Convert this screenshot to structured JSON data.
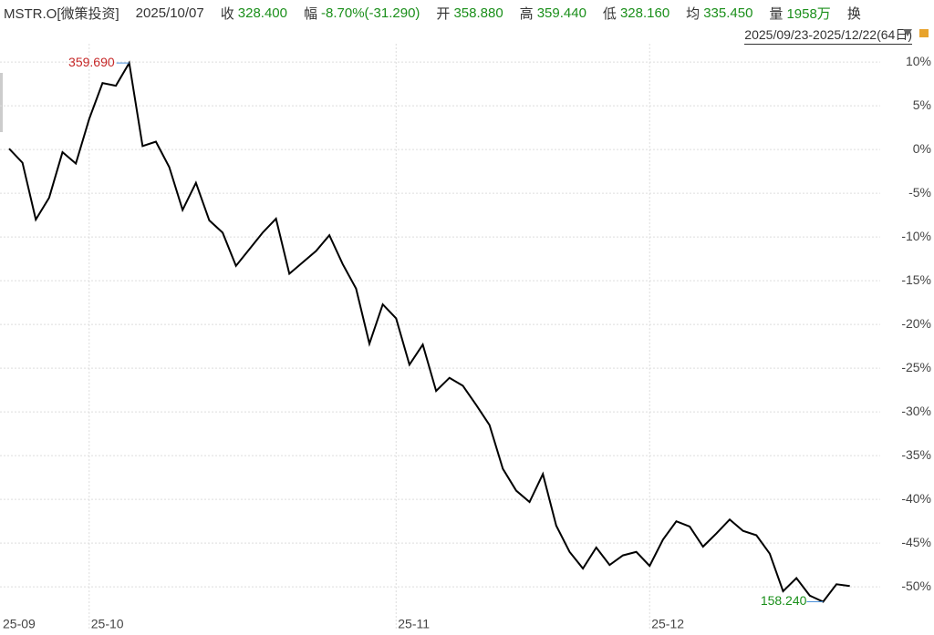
{
  "header": {
    "symbol": "MSTR.O[微策投资]",
    "date": "2025/10/07",
    "fields": [
      {
        "label": "收",
        "value": "328.400"
      },
      {
        "label": "幅",
        "value": "-8.70%(-31.290)"
      },
      {
        "label": "开",
        "value": "358.880"
      },
      {
        "label": "高",
        "value": "359.440"
      },
      {
        "label": "低",
        "value": "328.160"
      },
      {
        "label": "均",
        "value": "335.450"
      },
      {
        "label": "量",
        "value": "1958万"
      },
      {
        "label": "换",
        "value": null
      }
    ],
    "range": "2025/09/23-2025/12/22(64日)"
  },
  "chart_data": {
    "type": "line",
    "color": "#000000",
    "grid": true,
    "categories": [
      "25-09",
      null,
      null,
      null,
      null,
      null,
      "25-10",
      null,
      null,
      null,
      null,
      null,
      null,
      null,
      null,
      null,
      null,
      null,
      null,
      null,
      null,
      null,
      null,
      null,
      null,
      null,
      null,
      null,
      null,
      "25-11",
      null,
      null,
      null,
      null,
      null,
      null,
      null,
      null,
      null,
      null,
      null,
      null,
      null,
      null,
      null,
      null,
      null,
      null,
      "25-12",
      null,
      null,
      null,
      null,
      null,
      null,
      null,
      null,
      null,
      null,
      null,
      null,
      null,
      null,
      null
    ],
    "values": [
      0.1,
      -1.5,
      -8.0,
      -5.5,
      -0.3,
      -1.6,
      3.5,
      7.6,
      7.3,
      9.9,
      0.4,
      0.9,
      -2.0,
      -6.9,
      -3.8,
      -8.1,
      -9.5,
      -13.3,
      -11.4,
      -9.5,
      -7.9,
      -14.2,
      -12.9,
      -11.6,
      -9.8,
      -13.1,
      -15.9,
      -22.2,
      -17.7,
      -19.3,
      -24.6,
      -22.3,
      -27.6,
      -26.1,
      -27.0,
      -29.2,
      -31.5,
      -36.5,
      -39.0,
      -40.3,
      -37.1,
      -43.0,
      -46.0,
      -47.9,
      -45.5,
      -47.5,
      -46.4,
      -46.0,
      -47.6,
      -44.6,
      -42.5,
      -43.1,
      -45.4,
      -43.9,
      -42.3,
      -43.6,
      -44.1,
      -46.2,
      -50.5,
      -49.0,
      -51.0,
      -51.7,
      -49.7,
      -49.9
    ],
    "high_label": "359.690",
    "low_label": "158.240",
    "ylim": [
      -52.9,
      12.1
    ],
    "yticks": [
      {
        "value": 10,
        "label": "10%"
      },
      {
        "value": 5,
        "label": "5%"
      },
      {
        "value": 0,
        "label": "0%"
      },
      {
        "value": -5,
        "label": "-5%"
      },
      {
        "value": -10,
        "label": "-10%"
      },
      {
        "value": -15,
        "label": "-15%"
      },
      {
        "value": -20,
        "label": "-20%"
      },
      {
        "value": -25,
        "label": "-25%"
      },
      {
        "value": -30,
        "label": "-30%"
      },
      {
        "value": -35,
        "label": "-35%"
      },
      {
        "value": -40,
        "label": "-40%"
      },
      {
        "value": -45,
        "label": "-45%"
      },
      {
        "value": -50,
        "label": "-50%"
      }
    ]
  }
}
